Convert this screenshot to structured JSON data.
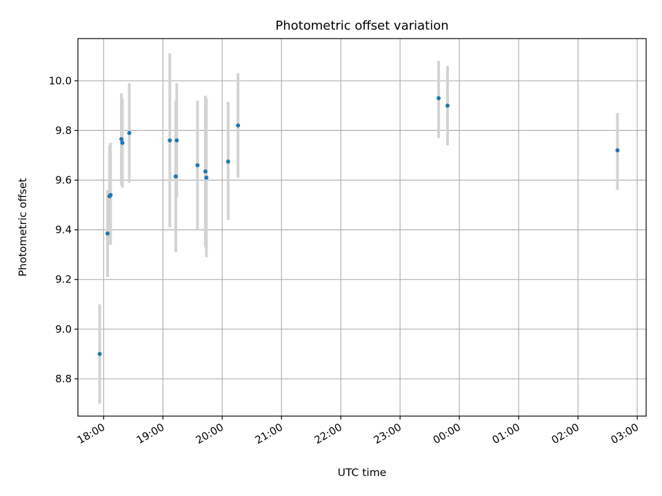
{
  "chart_data": {
    "type": "scatter",
    "title": "Photometric offset variation",
    "xlabel": "UTC time",
    "ylabel": "Photometric offset",
    "grid": true,
    "xlim": [
      "17:34",
      "03:09"
    ],
    "ylim": [
      8.65,
      10.17
    ],
    "x_ticks": [
      "18:00",
      "19:00",
      "20:00",
      "21:00",
      "22:00",
      "23:00",
      "00:00",
      "01:00",
      "02:00",
      "03:00"
    ],
    "y_ticks": [
      8.8,
      9.0,
      9.2,
      9.4,
      9.6,
      9.8,
      10.0
    ],
    "colors": {
      "point": "#1f77b4",
      "errorbar": "#d3d3d3",
      "grid": "#b0b0b0"
    },
    "points": [
      {
        "x": "17:56",
        "y": 8.9,
        "err_low": 8.7,
        "err_high": 9.1
      },
      {
        "x": "18:04",
        "y": 9.385,
        "err_low": 9.21,
        "err_high": 9.56
      },
      {
        "x": "18:06",
        "y": 9.535,
        "err_low": 9.34,
        "err_high": 9.74
      },
      {
        "x": "18:07",
        "y": 9.54,
        "err_low": 9.34,
        "err_high": 9.75
      },
      {
        "x": "18:18",
        "y": 9.765,
        "err_low": 9.58,
        "err_high": 9.95
      },
      {
        "x": "18:19",
        "y": 9.75,
        "err_low": 9.57,
        "err_high": 9.93
      },
      {
        "x": "18:26",
        "y": 9.79,
        "err_low": 9.59,
        "err_high": 9.99
      },
      {
        "x": "19:07",
        "y": 9.76,
        "err_low": 9.41,
        "err_high": 10.11
      },
      {
        "x": "19:13",
        "y": 9.615,
        "err_low": 9.31,
        "err_high": 9.92
      },
      {
        "x": "19:14",
        "y": 9.76,
        "err_low": 9.53,
        "err_high": 9.99
      },
      {
        "x": "19:35",
        "y": 9.66,
        "err_low": 9.4,
        "err_high": 9.92
      },
      {
        "x": "19:43",
        "y": 9.635,
        "err_low": 9.33,
        "err_high": 9.94
      },
      {
        "x": "19:44",
        "y": 9.61,
        "err_low": 9.29,
        "err_high": 9.93
      },
      {
        "x": "20:06",
        "y": 9.675,
        "err_low": 9.44,
        "err_high": 9.915
      },
      {
        "x": "20:16",
        "y": 9.82,
        "err_low": 9.61,
        "err_high": 10.03
      },
      {
        "x": "23:39",
        "y": 9.93,
        "err_low": 9.77,
        "err_high": 10.08
      },
      {
        "x": "23:48",
        "y": 9.9,
        "err_low": 9.74,
        "err_high": 10.06
      },
      {
        "x": "02:40",
        "y": 9.72,
        "err_low": 9.56,
        "err_high": 9.87
      }
    ]
  }
}
